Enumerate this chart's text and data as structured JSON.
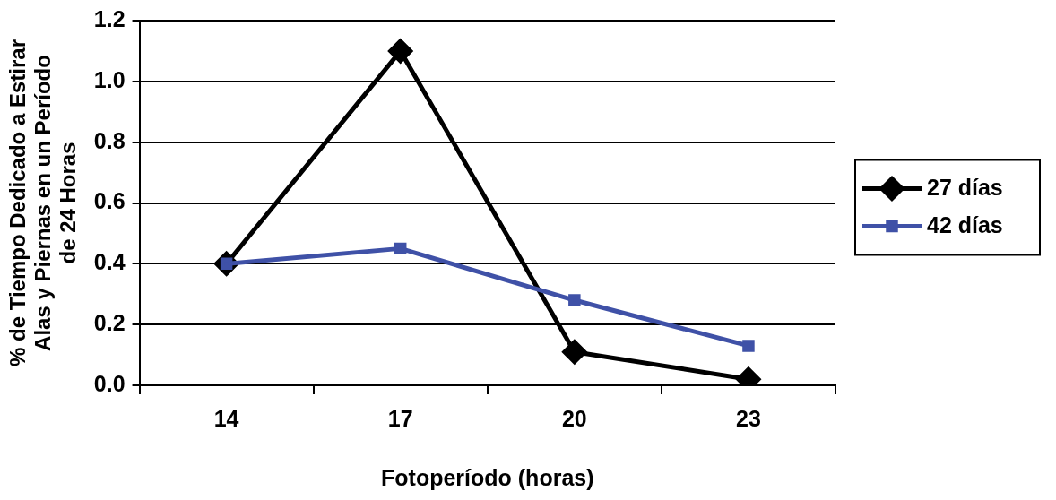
{
  "chart_data": {
    "type": "line",
    "xlabel": "Fotoperíodo (horas)",
    "ylabel": "% de Tiempo Dedicado a Estirar Alas y Piernas en un Período de 24 Horas",
    "categories": [
      "14",
      "17",
      "20",
      "23"
    ],
    "series": [
      {
        "name": "27 días",
        "color": "#000000",
        "marker": "diamond",
        "values": [
          0.4,
          1.1,
          0.11,
          0.02
        ]
      },
      {
        "name": "42 días",
        "color": "#3f51a7",
        "marker": "square",
        "values": [
          0.4,
          0.45,
          0.28,
          0.13
        ]
      }
    ],
    "ylim": [
      0,
      1.2
    ],
    "yticks": [
      {
        "value": 0,
        "label": "0.0"
      },
      {
        "value": 0.2,
        "label": "0.2"
      },
      {
        "value": 0.4,
        "label": "0.4"
      },
      {
        "value": 0.6,
        "label": "0.6"
      },
      {
        "value": 0.8,
        "label": "0.8"
      },
      {
        "value": 1.0,
        "label": "1.0"
      },
      {
        "value": 1.2,
        "label": "1.2"
      }
    ],
    "grid": "y",
    "legend": "right",
    "line_style": "solid"
  }
}
